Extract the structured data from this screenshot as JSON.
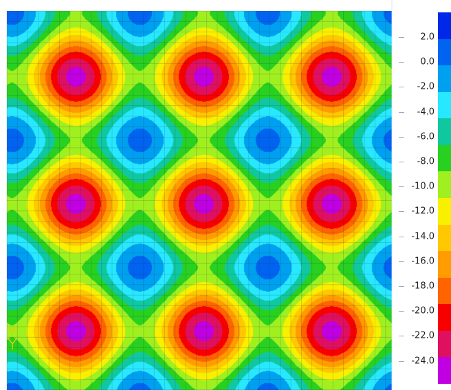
{
  "legend": {
    "labels": [
      "2.0",
      "0.0",
      "-2.0",
      "-4.0",
      "-6.0",
      "-8.0",
      "-10.0",
      "-12.0",
      "-14.0",
      "-16.0",
      "-18.0",
      "-20.0",
      "-22.0",
      "-24.0"
    ],
    "colors": [
      "#0028e8",
      "#0064f0",
      "#00a0f0",
      "#28e8ff",
      "#10c8a0",
      "#28d020",
      "#a0f020",
      "#f8f000",
      "#ffc800",
      "#ff9c00",
      "#ff6400",
      "#f80000",
      "#e01060",
      "#c000e0"
    ]
  },
  "contour": {
    "colors": [
      "#0028e8",
      "#0064f0",
      "#00a0f0",
      "#28e8ff",
      "#10c8a0",
      "#28d020",
      "#a0f020",
      "#f8f000",
      "#ffc800",
      "#ff9c00",
      "#ff6400",
      "#f80000",
      "#e01060",
      "#c000e0"
    ]
  }
}
